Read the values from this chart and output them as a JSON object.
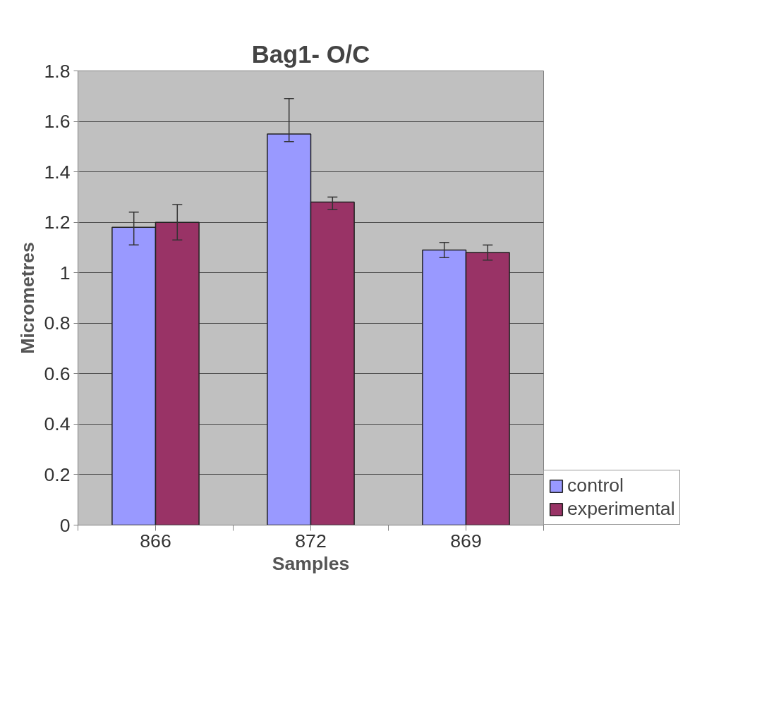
{
  "chart_data": {
    "type": "bar",
    "title": "Bag1- O/C",
    "xlabel": "Samples",
    "ylabel": "Micrometres",
    "categories": [
      "866",
      "872",
      "869"
    ],
    "series": [
      {
        "name": "control",
        "color": "#9999ff",
        "values": [
          1.18,
          1.55,
          1.09
        ],
        "errors": [
          [
            1.11,
            1.24
          ],
          [
            1.52,
            1.69
          ],
          [
            1.06,
            1.12
          ]
        ]
      },
      {
        "name": "experimental",
        "color": "#993366",
        "values": [
          1.2,
          1.28,
          1.08
        ],
        "errors": [
          [
            1.13,
            1.27
          ],
          [
            1.25,
            1.3
          ],
          [
            1.05,
            1.11
          ]
        ]
      }
    ],
    "ylim": [
      0,
      1.8
    ],
    "yticks": [
      0,
      0.2,
      0.4,
      0.6,
      0.8,
      1,
      1.2,
      1.4,
      1.6,
      1.8
    ],
    "grid": "y",
    "legend": "bottom right"
  }
}
